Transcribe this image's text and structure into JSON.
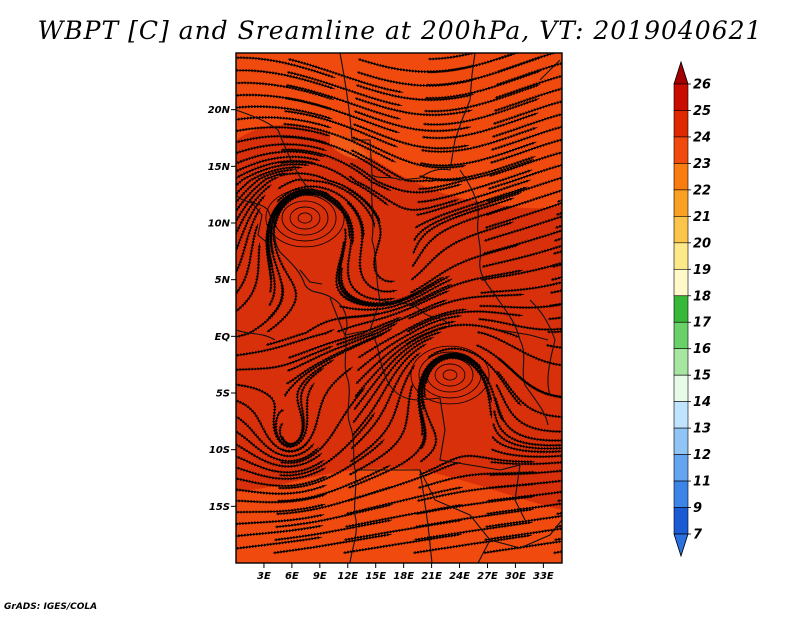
{
  "title": "WBPT [C] and Sreamline at 200hPa, VT: 2019040621",
  "footer": "GrADS: IGES/COLA",
  "map": {
    "lon_range": [
      0,
      35
    ],
    "lat_range": [
      -20,
      25
    ],
    "lon_ticks": [
      {
        "value": 3,
        "label": "3E"
      },
      {
        "value": 6,
        "label": "6E"
      },
      {
        "value": 9,
        "label": "9E"
      },
      {
        "value": 12,
        "label": "12E"
      },
      {
        "value": 15,
        "label": "15E"
      },
      {
        "value": 18,
        "label": "18E"
      },
      {
        "value": 21,
        "label": "21E"
      },
      {
        "value": 24,
        "label": "24E"
      },
      {
        "value": 27,
        "label": "27E"
      },
      {
        "value": 30,
        "label": "30E"
      },
      {
        "value": 33,
        "label": "33E"
      }
    ],
    "lat_ticks": [
      {
        "value": 20,
        "label": "20N"
      },
      {
        "value": 15,
        "label": "15N"
      },
      {
        "value": 10,
        "label": "10N"
      },
      {
        "value": 5,
        "label": "5N"
      },
      {
        "value": 0,
        "label": "EQ"
      },
      {
        "value": -5,
        "label": "5S"
      },
      {
        "value": -10,
        "label": "10S"
      },
      {
        "value": -15,
        "label": "15S"
      }
    ],
    "field_colors": {
      "base": "#f04a0f",
      "dark": "#d8300a",
      "light": "#f25a18"
    }
  },
  "colorbar": {
    "levels": [
      {
        "label": "26",
        "color": "#a50000"
      },
      {
        "label": "25",
        "color": "#c80c00"
      },
      {
        "label": "24",
        "color": "#de2800"
      },
      {
        "label": "23",
        "color": "#f04a0f"
      },
      {
        "label": "22",
        "color": "#f87c10"
      },
      {
        "label": "21",
        "color": "#faa022"
      },
      {
        "label": "20",
        "color": "#fbc44a"
      },
      {
        "label": "19",
        "color": "#fde88a"
      },
      {
        "label": "18",
        "color": "#fff8c8"
      },
      {
        "label": "17",
        "color": "#38b838"
      },
      {
        "label": "16",
        "color": "#6ad06a"
      },
      {
        "label": "15",
        "color": "#a6e6a0"
      },
      {
        "label": "14",
        "color": "#e8fae8"
      },
      {
        "label": "13",
        "color": "#c0e4ff"
      },
      {
        "label": "12",
        "color": "#90c4f4"
      },
      {
        "label": "11",
        "color": "#64a4f0"
      },
      {
        "label": "9",
        "color": "#3c84e8"
      },
      {
        "label": "7",
        "color": "#1a5ad2"
      }
    ],
    "bottom_color": "#2a70e0"
  }
}
